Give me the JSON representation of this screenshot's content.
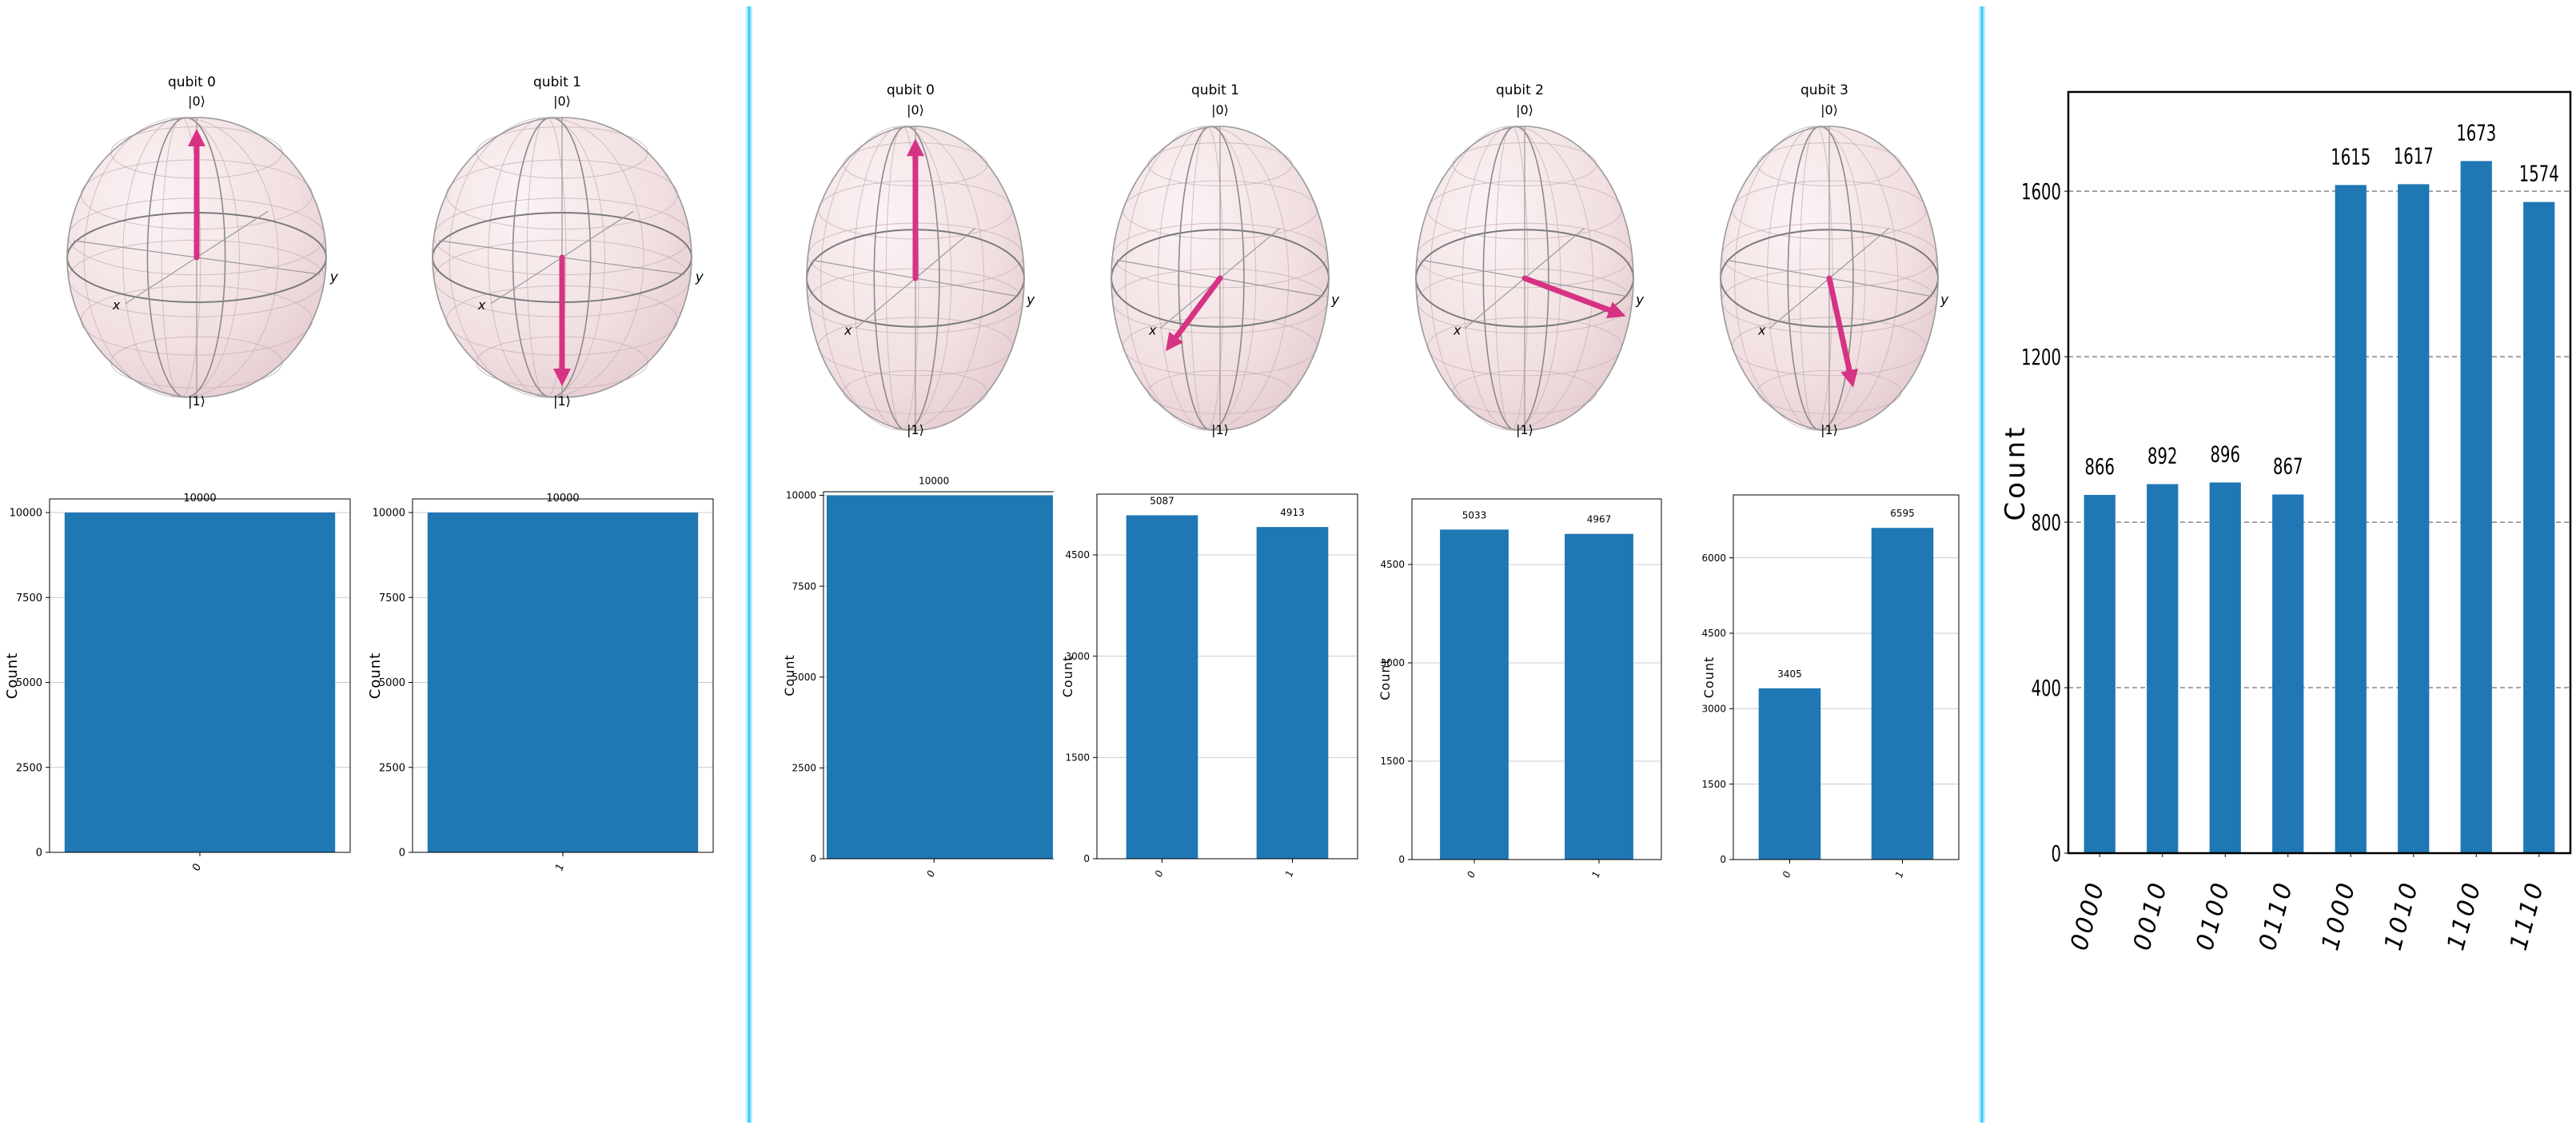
{
  "colors": {
    "bar": "#1f77b4",
    "vector": "#d63384",
    "sphere": "#f4e4e6",
    "separator": "#29b6f6"
  },
  "panels": [
    {
      "spheres": [
        {
          "title": "qubit 0",
          "top_label": "|0⟩",
          "bottom_label": "|1⟩",
          "x_label": "x",
          "y_label": "y",
          "vector": "up"
        },
        {
          "title": "qubit 1",
          "top_label": "|0⟩",
          "bottom_label": "|1⟩",
          "x_label": "x",
          "y_label": "y",
          "vector": "down"
        }
      ]
    },
    {
      "spheres": [
        {
          "title": "qubit 0",
          "top_label": "|0⟩",
          "bottom_label": "|1⟩",
          "x_label": "x",
          "y_label": "y",
          "vector": "up"
        },
        {
          "title": "qubit 1",
          "top_label": "|0⟩",
          "bottom_label": "|1⟩",
          "x_label": "x",
          "y_label": "y",
          "vector": "toward-x"
        },
        {
          "title": "qubit 2",
          "top_label": "|0⟩",
          "bottom_label": "|1⟩",
          "x_label": "x",
          "y_label": "y",
          "vector": "toward-y"
        },
        {
          "title": "qubit 3",
          "top_label": "|0⟩",
          "bottom_label": "|1⟩",
          "x_label": "x",
          "y_label": "y",
          "vector": "down-tilted"
        }
      ]
    }
  ],
  "chart_data": [
    {
      "type": "bar",
      "categories": [
        "0"
      ],
      "values": [
        10000
      ],
      "ylabel": "Count",
      "ylim": [
        0,
        10400
      ],
      "yticks": [
        0,
        2500,
        5000,
        7500,
        10000
      ],
      "grid": true
    },
    {
      "type": "bar",
      "categories": [
        "1"
      ],
      "values": [
        10000
      ],
      "ylabel": "Count",
      "ylim": [
        0,
        10400
      ],
      "yticks": [
        0,
        2500,
        5000,
        7500,
        10000
      ],
      "grid": true
    },
    {
      "type": "bar",
      "categories": [
        "0"
      ],
      "values": [
        10000
      ],
      "ylabel": "Count",
      "ylim": [
        0,
        10100
      ],
      "yticks": [
        0,
        2500,
        5000,
        7500,
        10000
      ],
      "grid": true
    },
    {
      "type": "bar",
      "categories": [
        "0",
        "1"
      ],
      "values": [
        5087,
        4913
      ],
      "ylabel": "Count",
      "ylim": [
        0,
        5400
      ],
      "yticks": [
        0,
        1500,
        3000,
        4500
      ],
      "grid": true
    },
    {
      "type": "bar",
      "categories": [
        "0",
        "1"
      ],
      "values": [
        5033,
        4967
      ],
      "ylabel": "Count",
      "ylim": [
        0,
        5500
      ],
      "yticks": [
        0,
        1500,
        3000,
        4500
      ],
      "grid": true
    },
    {
      "type": "bar",
      "categories": [
        "0",
        "1"
      ],
      "values": [
        3405,
        6595
      ],
      "ylabel": "Count",
      "ylim": [
        0,
        7250
      ],
      "yticks": [
        0,
        1500,
        3000,
        4500,
        6000
      ],
      "grid": true
    },
    {
      "type": "bar",
      "categories": [
        "0000",
        "0010",
        "0100",
        "0110",
        "1000",
        "1010",
        "1100",
        "1110"
      ],
      "values": [
        866,
        892,
        896,
        867,
        1615,
        1617,
        1673,
        1574
      ],
      "ylabel": "Count",
      "ylim": [
        0,
        1840
      ],
      "yticks": [
        0,
        400,
        800,
        1200,
        1600
      ],
      "grid": true
    }
  ]
}
